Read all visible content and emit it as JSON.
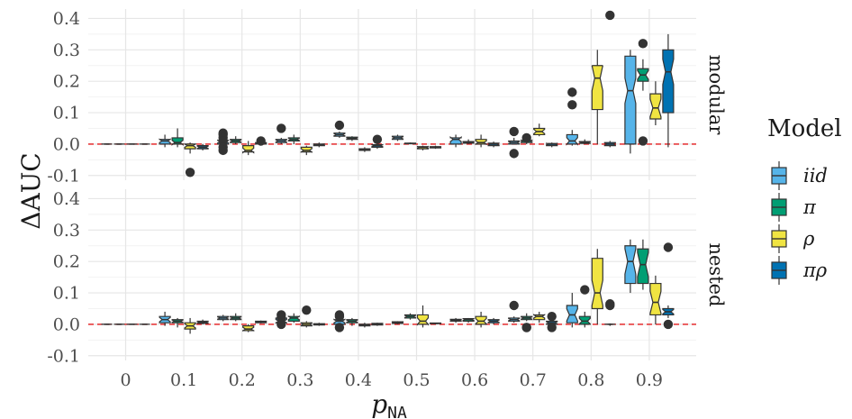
{
  "chart_data": {
    "type": "boxplot",
    "xlabel": "p",
    "xlabel_sub": "NA",
    "ylabel": "ΔAUC",
    "categories": [
      "0",
      "0.1",
      "0.2",
      "0.3",
      "0.4",
      "0.5",
      "0.6",
      "0.7",
      "0.8",
      "0.9"
    ],
    "yticks": [
      "0.4",
      "0.3",
      "0.2",
      "0.1",
      "0.0",
      "-0.1"
    ],
    "ylim": [
      -0.115,
      0.43
    ],
    "reference_line": 0.0,
    "reference_line_color": "#e41a1c",
    "grid": true,
    "legend": {
      "title": "Model",
      "position": "right",
      "entries": [
        {
          "key": "iid",
          "label": "iid",
          "color": "#56b4e9"
        },
        {
          "key": "pi",
          "label": "π",
          "color": "#009e73"
        },
        {
          "key": "rho",
          "label": "ρ",
          "color": "#f0e442"
        },
        {
          "key": "pirho",
          "label": "πρ",
          "color": "#0072b2"
        }
      ]
    },
    "panels": [
      {
        "name": "modular",
        "series": {
          "iid": [
            [
              0,
              0,
              0,
              0,
              0,
              []
            ],
            [
              -0.01,
              0.0,
              0.01,
              0.015,
              0.03,
              []
            ],
            [
              -0.005,
              0.0,
              0.008,
              0.012,
              0.02,
              [
                0.035,
                0.03,
                0.02,
                0.01,
                -0.01,
                -0.02
              ]
            ],
            [
              0.0,
              0.005,
              0.01,
              0.015,
              0.02,
              [
                0.05
              ]
            ],
            [
              0.02,
              0.025,
              0.03,
              0.035,
              0.04,
              [
                0.06
              ]
            ],
            [
              0.01,
              0.015,
              0.02,
              0.025,
              0.03,
              []
            ],
            [
              -0.01,
              0.0,
              0.015,
              0.02,
              0.03,
              []
            ],
            [
              0.0,
              0.0,
              0.005,
              0.01,
              0.02,
              [
                0.04,
                -0.03
              ]
            ],
            [
              -0.005,
              0.0,
              0.01,
              0.03,
              0.045,
              [
                0.165,
                0.125
              ]
            ],
            [
              -0.03,
              0.0,
              0.17,
              0.28,
              0.3,
              []
            ]
          ],
          "pi": [
            [
              0,
              0,
              0,
              0,
              0,
              []
            ],
            [
              -0.01,
              0.0,
              0.005,
              0.02,
              0.05,
              []
            ],
            [
              0.0,
              0.005,
              0.01,
              0.015,
              0.025,
              []
            ],
            [
              0.0,
              0.01,
              0.015,
              0.02,
              0.03,
              []
            ],
            [
              0.01,
              0.015,
              0.018,
              0.022,
              0.025,
              []
            ],
            [
              0.0,
              0.001,
              0.002,
              0.003,
              0.005,
              []
            ],
            [
              0.0,
              0.003,
              0.005,
              0.008,
              0.015,
              []
            ],
            [
              0.0,
              0.005,
              0.01,
              0.012,
              0.02,
              [
                0.02
              ]
            ],
            [
              0.0,
              0.002,
              0.005,
              0.008,
              0.015,
              []
            ],
            [
              0.17,
              0.2,
              0.22,
              0.24,
              0.27,
              [
                0.32,
                0.01
              ]
            ]
          ],
          "rho": [
            [
              0,
              0,
              0,
              0,
              0,
              []
            ],
            [
              -0.03,
              -0.015,
              -0.005,
              0.0,
              0.005,
              [
                -0.09
              ]
            ],
            [
              -0.035,
              -0.025,
              -0.02,
              -0.005,
              0.01,
              []
            ],
            [
              -0.035,
              -0.025,
              -0.02,
              -0.01,
              -0.005,
              []
            ],
            [
              -0.025,
              -0.02,
              -0.018,
              -0.015,
              -0.01,
              []
            ],
            [
              -0.02,
              -0.015,
              -0.01,
              -0.008,
              -0.005,
              []
            ],
            [
              -0.01,
              0.0,
              0.005,
              0.015,
              0.03,
              []
            ],
            [
              0.025,
              0.03,
              0.04,
              0.05,
              0.065,
              []
            ],
            [
              0.0,
              0.11,
              0.21,
              0.25,
              0.3,
              []
            ],
            [
              0.06,
              0.08,
              0.115,
              0.16,
              0.2,
              []
            ]
          ],
          "pirho": [
            [
              0,
              0,
              0,
              0,
              0,
              []
            ],
            [
              -0.02,
              -0.015,
              -0.01,
              -0.005,
              0.0,
              []
            ],
            [
              -0.005,
              0.0,
              0.002,
              0.005,
              0.01,
              [
                0.01
              ]
            ],
            [
              -0.01,
              -0.005,
              -0.002,
              0.0,
              0.005,
              []
            ],
            [
              -0.015,
              -0.01,
              -0.005,
              -0.002,
              0.0,
              [
                0.015
              ]
            ],
            [
              -0.015,
              -0.012,
              -0.01,
              -0.008,
              -0.005,
              []
            ],
            [
              -0.01,
              -0.005,
              0.0,
              0.003,
              0.008,
              []
            ],
            [
              -0.01,
              -0.005,
              0.0,
              0.002,
              0.005,
              []
            ],
            [
              -0.01,
              -0.005,
              0.0,
              0.005,
              0.01,
              [
                0.41
              ]
            ],
            [
              -0.01,
              0.1,
              0.23,
              0.3,
              0.35,
              []
            ]
          ]
        }
      },
      {
        "name": "nested",
        "series": {
          "iid": [
            [
              0,
              0,
              0,
              0,
              0,
              []
            ],
            [
              -0.005,
              0.005,
              0.015,
              0.025,
              0.04,
              []
            ],
            [
              0.01,
              0.015,
              0.02,
              0.025,
              0.03,
              []
            ],
            [
              -0.005,
              0.005,
              0.01,
              0.02,
              0.03,
              [
                0.03,
                0.02,
                0.0
              ]
            ],
            [
              -0.01,
              0.0,
              0.01,
              0.015,
              0.02,
              [
                0.03,
                0.025,
                -0.01
              ]
            ],
            [
              0.0,
              0.003,
              0.005,
              0.008,
              0.01,
              []
            ],
            [
              0.005,
              0.01,
              0.013,
              0.016,
              0.02,
              []
            ],
            [
              0.005,
              0.01,
              0.015,
              0.02,
              0.025,
              [
                0.06
              ]
            ],
            [
              -0.01,
              0.005,
              0.03,
              0.06,
              0.1,
              []
            ],
            [
              0.1,
              0.13,
              0.2,
              0.25,
              0.27,
              []
            ]
          ],
          "pi": [
            [
              0,
              0,
              0,
              0,
              0,
              []
            ],
            [
              -0.01,
              0.005,
              0.01,
              0.015,
              0.02,
              []
            ],
            [
              0.01,
              0.015,
              0.02,
              0.025,
              0.035,
              []
            ],
            [
              0.005,
              0.01,
              0.02,
              0.025,
              0.035,
              []
            ],
            [
              -0.005,
              0.005,
              0.01,
              0.015,
              0.02,
              []
            ],
            [
              0.015,
              0.02,
              0.025,
              0.03,
              0.035,
              []
            ],
            [
              0.005,
              0.01,
              0.015,
              0.018,
              0.02,
              []
            ],
            [
              0.01,
              0.015,
              0.02,
              0.025,
              0.035,
              [
                -0.01,
                -0.01
              ]
            ],
            [
              -0.01,
              0.0,
              0.01,
              0.025,
              0.04,
              [
                0.11
              ]
            ],
            [
              0.11,
              0.13,
              0.19,
              0.24,
              0.27,
              []
            ]
          ],
          "rho": [
            [
              0,
              0,
              0,
              0,
              0,
              []
            ],
            [
              -0.03,
              -0.015,
              -0.005,
              0.005,
              0.02,
              []
            ],
            [
              -0.025,
              -0.02,
              -0.015,
              -0.005,
              0.0,
              []
            ],
            [
              -0.01,
              -0.005,
              0.0,
              0.005,
              0.01,
              [
                0.045
              ]
            ],
            [
              -0.01,
              -0.005,
              -0.002,
              0.0,
              0.005,
              []
            ],
            [
              -0.01,
              0.0,
              0.01,
              0.03,
              0.06,
              []
            ],
            [
              -0.01,
              0.0,
              0.01,
              0.025,
              0.04,
              []
            ],
            [
              0.005,
              0.015,
              0.025,
              0.03,
              0.04,
              []
            ],
            [
              0.0,
              0.05,
              0.1,
              0.21,
              0.24,
              []
            ],
            [
              0.0,
              0.03,
              0.07,
              0.13,
              0.155,
              []
            ]
          ],
          "pirho": [
            [
              0,
              0,
              0,
              0,
              0,
              []
            ],
            [
              0.0,
              0.003,
              0.006,
              0.01,
              0.015,
              []
            ],
            [
              0.003,
              0.005,
              0.008,
              0.01,
              0.012,
              []
            ],
            [
              -0.005,
              -0.002,
              0.0,
              0.002,
              0.005,
              []
            ],
            [
              -0.005,
              -0.002,
              0.0,
              0.003,
              0.005,
              []
            ],
            [
              0.0,
              0.002,
              0.003,
              0.004,
              0.005,
              []
            ],
            [
              0.0,
              0.005,
              0.01,
              0.015,
              0.02,
              []
            ],
            [
              -0.01,
              0.0,
              0.005,
              0.01,
              0.015,
              [
                0.025,
                -0.01
              ]
            ],
            [
              -0.005,
              0.0,
              0.0,
              0.0,
              0.003,
              [
                0.065,
                0.06
              ]
            ],
            [
              0.02,
              0.03,
              0.04,
              0.05,
              0.06,
              [
                0.245,
                0.0
              ]
            ]
          ]
        }
      }
    ]
  }
}
